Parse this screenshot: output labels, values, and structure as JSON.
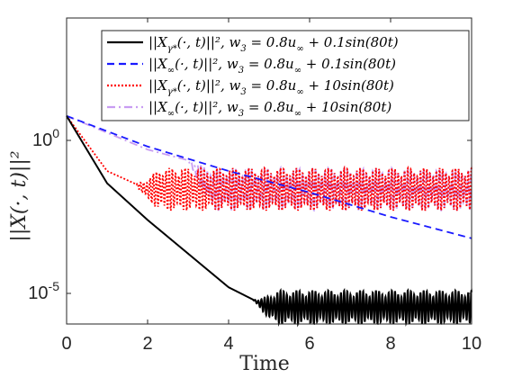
{
  "chart_data": {
    "type": "line",
    "xlabel": "Time",
    "ylabel": "||X(·, t)||²",
    "xlim": [
      0,
      10
    ],
    "ylim_log10": [
      -6,
      4
    ],
    "y_scale": "log",
    "grid": false,
    "legend_position": "top-right",
    "x_ticks": [
      "0",
      "2",
      "4",
      "6",
      "8",
      "10"
    ],
    "y_ticks": [
      {
        "base": "10",
        "exp": "0",
        "log10": 0
      },
      {
        "base": "10",
        "exp": "-5",
        "log10": -5
      }
    ],
    "series": [
      {
        "name": "||X_γ*(·,t)||², w₃ = 0.8u∞ + 0.1sin(80t)",
        "color": "#000000",
        "style": "solid",
        "x": [
          0,
          1,
          2,
          3,
          4,
          4.6,
          5,
          5.5,
          6,
          10
        ],
        "log10_y": [
          0.8,
          -1.4,
          -2.6,
          -3.7,
          -4.8,
          -5.2,
          -5.4,
          -5.5,
          -5.5,
          -5.5
        ],
        "oscillation_band_log10": [
          -6.0,
          -4.9
        ],
        "oscillation_from_x": 4.6
      },
      {
        "name": "||X∞(·,t)||², w₃ = 0.8u∞ + 0.1sin(80t)",
        "color": "#1a1aff",
        "style": "dashed",
        "x": [
          0,
          2,
          4,
          6,
          8,
          10
        ],
        "log10_y": [
          0.8,
          -0.2,
          -1.0,
          -1.7,
          -2.5,
          -3.2
        ]
      },
      {
        "name": "||X_γ*(·,t)||², w₃ = 0.8u∞ + 10sin(80t)",
        "color": "#ff0000",
        "style": "dotted",
        "x": [
          0,
          1,
          2,
          3,
          4,
          10
        ],
        "log10_y": [
          0.8,
          -1.0,
          -1.6,
          -1.7,
          -1.6,
          -1.6
        ],
        "oscillation_band_log10": [
          -2.3,
          -0.9
        ],
        "oscillation_from_x": 1.7
      },
      {
        "name": "||X∞(·,t)||², w₃ = 0.8u∞ + 10sin(80t)",
        "color": "#c89cf2",
        "style": "dashdot",
        "x": [
          0,
          2,
          4,
          6,
          10
        ],
        "log10_y": [
          0.8,
          -0.3,
          -1.0,
          -1.4,
          -1.5
        ],
        "oscillation_band_log10": [
          -2.3,
          -0.9
        ],
        "oscillation_from_x": 3.0
      }
    ]
  },
  "legend": [
    {
      "prefix": "||X",
      "sub": "γ*",
      "mid": "(·, t)||², w",
      "sub2": "3",
      "suffix": " = 0.8u",
      "sub3": "∞",
      "tail": " + 0.1sin(80t)"
    },
    {
      "prefix": "||X",
      "sub": "∞",
      "mid": "(·, t)||², w",
      "sub2": "3",
      "suffix": " = 0.8u",
      "sub3": "∞",
      "tail": " + 0.1sin(80t)"
    },
    {
      "prefix": "||X",
      "sub": "γ*",
      "mid": "(·, t)||², w",
      "sub2": "3",
      "suffix": " = 0.8u",
      "sub3": "∞",
      "tail": " + 10sin(80t)"
    },
    {
      "prefix": "||X",
      "sub": "∞",
      "mid": "(·, t)||², w",
      "sub2": "3",
      "suffix": " = 0.8u",
      "sub3": "∞",
      "tail": " + 10sin(80t)"
    }
  ]
}
